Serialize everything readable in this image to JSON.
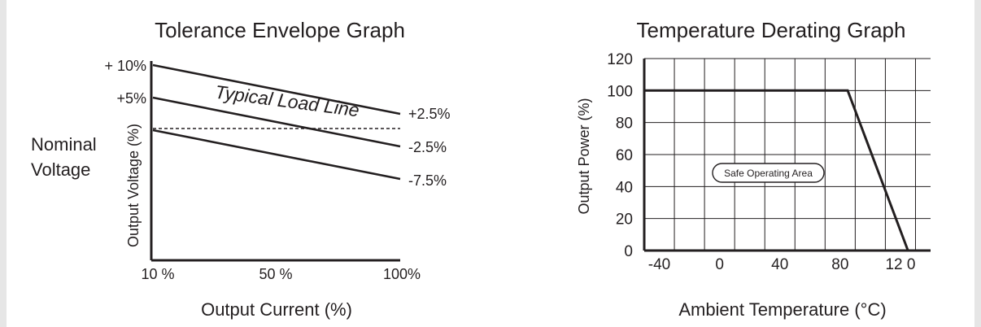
{
  "chart_data": [
    {
      "type": "line",
      "title": "Tolerance Envelope Graph",
      "xlabel": "Output Current (%)",
      "ylabel": "Output Voltage (%)",
      "side_label": [
        "Nominal",
        "Voltage"
      ],
      "x_ticks": [
        "10 %",
        "50 %",
        "100%"
      ],
      "left_labels": [
        "+ 10%",
        "+5%"
      ],
      "right_labels": [
        "+2.5%",
        "-2.5%",
        "-7.5%"
      ],
      "nominal_line": "dashed",
      "annotation": "Typical Load Line",
      "series": [
        {
          "x": [
            10,
            100
          ],
          "values": [
            10,
            2.5
          ]
        },
        {
          "x": [
            10,
            100
          ],
          "values": [
            5,
            -2.5
          ]
        },
        {
          "x": [
            10,
            100
          ],
          "values": [
            0,
            -7.5
          ]
        }
      ],
      "xlim": [
        10,
        100
      ],
      "ylim": [
        -20,
        10
      ]
    },
    {
      "type": "line",
      "title": "Temperature Derating Graph",
      "xlabel": "Ambient Temperature (°C)",
      "ylabel": "Output Power (%)",
      "x_ticks": [
        "-40",
        "0",
        "40",
        "80",
        "12 0"
      ],
      "y_ticks": [
        "0",
        "20",
        "40",
        "60",
        "80",
        "100",
        "120"
      ],
      "xlim": [
        -50,
        140
      ],
      "ylim": [
        0,
        120
      ],
      "grid": true,
      "annotation": "Safe Operating Area",
      "series": [
        {
          "x": [
            -50,
            85,
            125
          ],
          "values": [
            100,
            100,
            0
          ]
        }
      ]
    }
  ]
}
